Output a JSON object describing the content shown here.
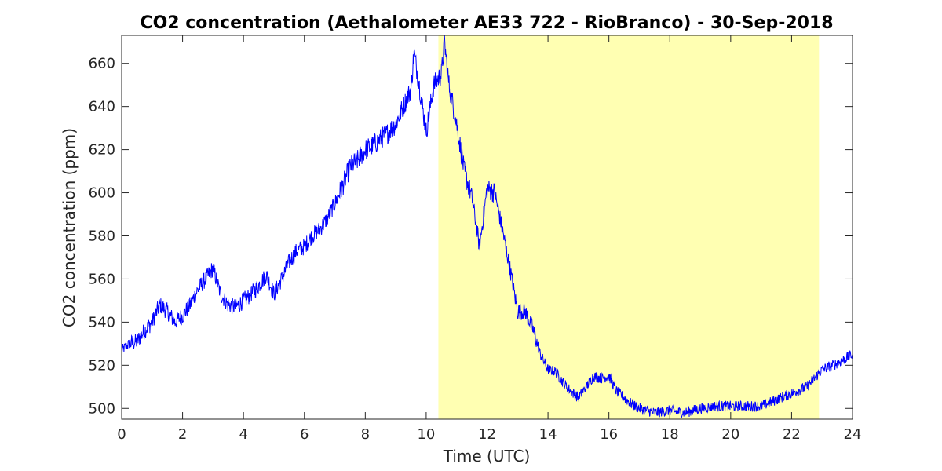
{
  "chart_data": {
    "type": "line",
    "title": "CO2 concentration (Aethalometer AE33 722 - RioBranco) - 30-Sep-2018",
    "xlabel": "Time (UTC)",
    "ylabel": "CO2 concentration (ppm)",
    "xlim": [
      0,
      24
    ],
    "ylim": [
      495,
      673
    ],
    "xticks": [
      0,
      2,
      4,
      6,
      8,
      10,
      12,
      14,
      16,
      18,
      20,
      22,
      24
    ],
    "yticks": [
      500,
      520,
      540,
      560,
      580,
      600,
      620,
      640,
      660
    ],
    "grid": false,
    "line_color": "#0000ff",
    "highlight_color": "#ffffb2",
    "highlight_region": {
      "x_start": 10.4,
      "x_end": 22.9
    },
    "series": [
      {
        "x": [
          0.0,
          0.25,
          0.5,
          0.75,
          1.0,
          1.25,
          1.5,
          1.75,
          2.0,
          2.25,
          2.5,
          2.75,
          3.0,
          3.25,
          3.5,
          3.75,
          4.0,
          4.25,
          4.5,
          4.75,
          5.0,
          5.25,
          5.5,
          5.75,
          6.0,
          6.25,
          6.5,
          6.75,
          7.0,
          7.25,
          7.5,
          7.75,
          8.0,
          8.25,
          8.5,
          8.75,
          9.0,
          9.25,
          9.5,
          9.6,
          9.75,
          10.0,
          10.25,
          10.5,
          10.6,
          10.75,
          11.0,
          11.25,
          11.5,
          11.75,
          12.0,
          12.25,
          12.5,
          12.75,
          13.0,
          13.25,
          13.5,
          13.75,
          14.0,
          14.25,
          14.5,
          14.75,
          15.0,
          15.25,
          15.5,
          15.75,
          16.0,
          16.25,
          16.5,
          16.75,
          17.0,
          17.5,
          18.0,
          18.5,
          19.0,
          19.5,
          20.0,
          20.5,
          21.0,
          21.5,
          22.0,
          22.5,
          23.0,
          23.5,
          24.0
        ],
        "y": [
          527,
          530,
          531,
          536,
          540,
          548,
          545,
          540,
          543,
          548,
          555,
          560,
          565,
          553,
          548,
          547,
          550,
          553,
          557,
          562,
          553,
          560,
          568,
          573,
          575,
          580,
          583,
          588,
          595,
          603,
          612,
          615,
          620,
          622,
          625,
          628,
          632,
          640,
          648,
          665,
          652,
          628,
          650,
          655,
          670,
          650,
          632,
          610,
          598,
          575,
          602,
          600,
          583,
          565,
          545,
          545,
          537,
          525,
          518,
          517,
          512,
          508,
          505,
          510,
          515,
          514,
          515,
          508,
          505,
          502,
          500,
          498,
          499,
          498,
          500,
          501,
          501,
          501,
          501,
          504,
          507,
          510,
          518,
          521,
          525
        ]
      }
    ]
  }
}
